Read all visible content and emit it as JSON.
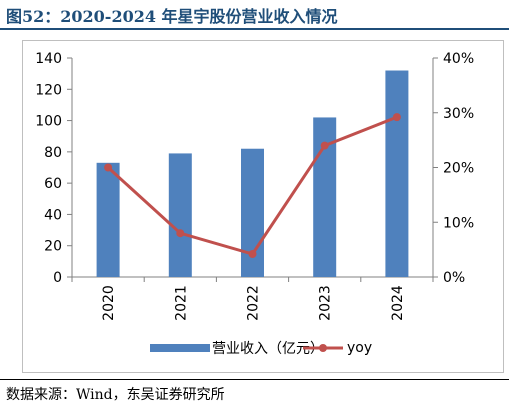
{
  "figure": {
    "title": "图52：2020-2024 年星宇股份营业收入情况",
    "source": "数据来源：Wind，东吴证券研究所"
  },
  "colors": {
    "bar": "#4f81bd",
    "line": "#c0504d",
    "title": "#1f4e79"
  },
  "chart_data": {
    "type": "bar",
    "categories": [
      "2020",
      "2021",
      "2022",
      "2023",
      "2024"
    ],
    "series": [
      {
        "name": "营业收入（亿元）",
        "type": "bar",
        "axis": "left",
        "values": [
          73,
          79,
          82,
          102,
          132
        ]
      },
      {
        "name": "yoy",
        "type": "line",
        "axis": "right",
        "values": [
          20.0,
          8.0,
          4.2,
          24.0,
          29.2
        ]
      }
    ],
    "ylim_left": [
      0,
      140
    ],
    "left_ticks": [
      "0",
      "20",
      "40",
      "60",
      "80",
      "100",
      "120",
      "140"
    ],
    "ylim_right": [
      0,
      40
    ],
    "right_ticks": [
      "0%",
      "10%",
      "20%",
      "30%",
      "40%"
    ],
    "grid": false,
    "legend_position": "bottom"
  }
}
